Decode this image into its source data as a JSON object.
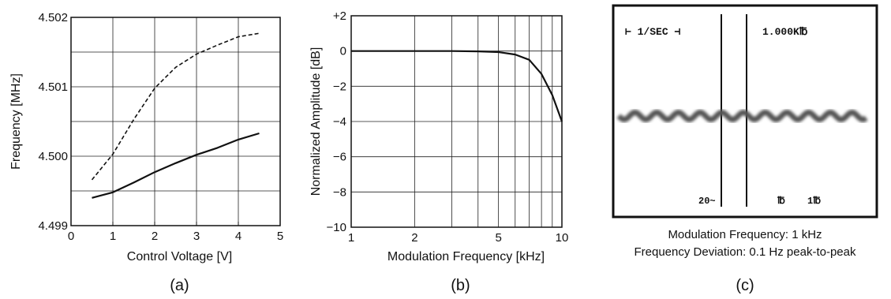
{
  "chart_data": [
    {
      "type": "line",
      "panel_label": "(a)",
      "xlabel": "Control Voltage [V]",
      "ylabel": "Frequency [MHz]",
      "xlim": [
        0,
        5
      ],
      "ylim": [
        4.499,
        4.502
      ],
      "x_ticks": [
        "0",
        "1",
        "2",
        "3",
        "4",
        "5"
      ],
      "y_ticks": [
        "4.499",
        "4.500",
        "4.501",
        "4.502"
      ],
      "grid": true,
      "series": [
        {
          "style": "dashed",
          "x": [
            0.5,
            1.0,
            1.5,
            2.0,
            2.5,
            3.0,
            3.5,
            4.0,
            4.5
          ],
          "y": [
            4.49966,
            4.50003,
            4.50053,
            4.50098,
            4.50128,
            4.50147,
            4.5016,
            4.50172,
            4.50177
          ]
        },
        {
          "style": "solid",
          "x": [
            0.5,
            1.0,
            1.5,
            2.0,
            2.5,
            3.0,
            3.5,
            4.0,
            4.5
          ],
          "y": [
            4.4994,
            4.49948,
            4.49962,
            4.49977,
            4.4999,
            4.50002,
            4.50012,
            4.50024,
            4.50033
          ]
        }
      ]
    },
    {
      "type": "line",
      "panel_label": "(b)",
      "xlabel": "Modulation Frequency [kHz]",
      "ylabel": "Normalized Amplitude [dB]",
      "xscale": "log",
      "xlim": [
        1,
        10
      ],
      "ylim": [
        -10,
        2
      ],
      "x_ticks": [
        "1",
        "2",
        "5",
        "10"
      ],
      "y_ticks": [
        "+2",
        "0",
        "−2",
        "−4",
        "−6",
        "−8",
        "−10"
      ],
      "grid": true,
      "series": [
        {
          "style": "solid",
          "x": [
            1,
            2,
            3,
            4,
            5,
            6,
            7,
            8,
            9,
            10
          ],
          "y": [
            0,
            0,
            0,
            -0.02,
            -0.06,
            -0.2,
            -0.5,
            -1.3,
            -2.5,
            -4.0
          ]
        }
      ]
    }
  ],
  "panel_c": {
    "label": "(c)",
    "screen_text_left": "⊢ 1/SEC ⊣",
    "screen_text_right": "1.000K℔",
    "screen_bottom_left": "20~",
    "screen_bottom_mid": "℔",
    "screen_bottom_right": "1℔",
    "caption_line1": "Modulation Frequency: 1 kHz",
    "caption_line2": "Frequency Deviation: 0.1 Hz peak-to-peak"
  },
  "colors": {
    "ink": "#111111",
    "screen_bg": "#ffffff",
    "trace": "#555555"
  }
}
